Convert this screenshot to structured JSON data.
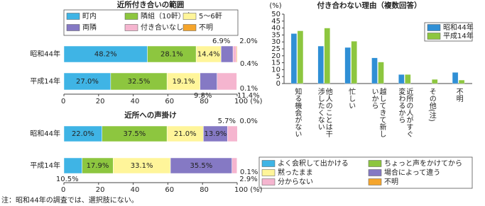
{
  "note": "注：昭和44年の調査では、選択肢にない。",
  "chart_data": [
    {
      "type": "stacked_bar_h",
      "title": "近所付き合いの範囲",
      "categories": [
        "昭和44年",
        "平成14年"
      ],
      "series": [
        {
          "name": "町内",
          "color": "#3fb4e5",
          "values": [
            48.2,
            27.0
          ],
          "value_labels": [
            "48.2%",
            "27.0%"
          ]
        },
        {
          "name": "隣組（10軒）内",
          "color": "#8dc63f",
          "values": [
            28.1,
            32.5
          ],
          "value_labels": [
            "28.1%",
            "32.5%"
          ]
        },
        {
          "name": "5～6軒",
          "color": "#fff59a",
          "values": [
            14.4,
            19.1
          ],
          "value_labels": [
            "14.4%",
            "19.1%"
          ]
        },
        {
          "name": "両隣",
          "color": "#8579c4",
          "values": [
            6.9,
            9.8
          ],
          "value_labels": [
            "6.9%",
            "9.8%"
          ]
        },
        {
          "name": "付き合いなし",
          "color": "#f5b5cf",
          "values": [
            2.0,
            11.4
          ],
          "value_labels": [
            "2.0%",
            "11.4%"
          ]
        },
        {
          "name": "不明",
          "color": "#f5a52c",
          "values": [
            0.4,
            0.1
          ],
          "value_labels": [
            "0.4%",
            "0.1%"
          ]
        }
      ],
      "xlim": [
        0,
        100
      ],
      "xticks": [
        0,
        20,
        40,
        60,
        80,
        {
          "value": 100,
          "label": "100 (%)"
        }
      ]
    },
    {
      "type": "stacked_bar_h",
      "title": "近所への声掛け",
      "categories": [
        "昭和44年",
        "平成14年"
      ],
      "series": [
        {
          "name": "よく会釈して出かける",
          "color": "#3fb4e5",
          "values": [
            22.0,
            10.5
          ],
          "value_labels": [
            "22.0%",
            "10.5%"
          ]
        },
        {
          "name": "ちょっと声をかけてから",
          "color": "#8dc63f",
          "values": [
            37.5,
            17.9
          ],
          "value_labels": [
            "37.5%",
            "17.9%"
          ]
        },
        {
          "name": "黙ったまま",
          "color": "#fff59a",
          "values": [
            21.0,
            33.1
          ],
          "value_labels": [
            "21.0%",
            "33.1%"
          ]
        },
        {
          "name": "場合によって違う",
          "color": "#8579c4",
          "values": [
            13.9,
            35.5
          ],
          "value_labels": [
            "13.9%",
            "35.5%"
          ]
        },
        {
          "name": "分からない",
          "color": "#f5b5cf",
          "values": [
            5.7,
            2.9
          ],
          "value_labels": [
            "5.7%",
            "2.9%"
          ]
        },
        {
          "name": "不明",
          "color": "#f5a52c",
          "values": [
            0.0,
            0.1
          ],
          "value_labels": [
            "0.0%",
            "0.1%"
          ]
        }
      ],
      "xlim": [
        0,
        100
      ],
      "xticks": [
        0,
        20,
        40,
        60,
        80,
        {
          "value": 100,
          "label": "100 (%)"
        }
      ]
    },
    {
      "type": "bar",
      "title": "付き合わない理由（複数回答）",
      "y_label": "(%)",
      "categories": [
        "知る機会がない",
        "他人のことは干渉したくない",
        "忙しい",
        "越してきて新しいから",
        "近所の人がすぐ変わるから",
        "その他(注)",
        "不明"
      ],
      "series": [
        {
          "name": "昭和44年",
          "color": "#2f8fd5",
          "values": [
            36,
            27,
            26,
            18.5,
            6.5,
            null,
            8
          ]
        },
        {
          "name": "平成14年",
          "color": "#8dc63f",
          "values": [
            38,
            40,
            30.5,
            15.5,
            6.5,
            3,
            2.5
          ]
        }
      ],
      "ylim": [
        0,
        50
      ],
      "yticks": [
        0,
        5,
        10,
        15,
        20,
        25,
        30,
        35,
        40,
        45,
        50
      ],
      "legend": "upper right"
    }
  ]
}
